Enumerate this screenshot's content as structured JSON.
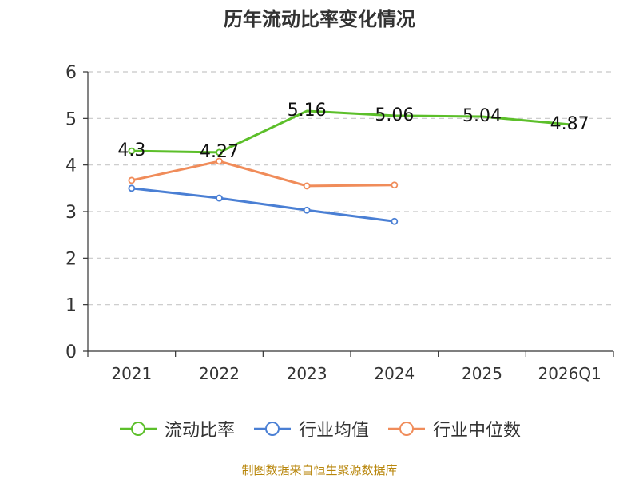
{
  "title": "历年流动比率变化情况",
  "source": "制图数据来自恒生聚源数据库",
  "chart_data": {
    "type": "line",
    "title": "历年流动比率变化情况",
    "categories": [
      "2021",
      "2022",
      "2023",
      "2024",
      "2025",
      "2026Q1"
    ],
    "ylim": [
      0,
      6
    ],
    "yticks": [
      0,
      1,
      2,
      3,
      4,
      5,
      6
    ],
    "grid": true,
    "legend_position": "bottom",
    "series": [
      {
        "name": "流动比率",
        "color": "#5cbf2a",
        "values": [
          4.3,
          4.27,
          5.16,
          5.06,
          5.04,
          4.87
        ],
        "labels": [
          "4.3",
          "4.27",
          "5.16",
          "5.06",
          "5.04",
          "4.87"
        ],
        "show_labels": true
      },
      {
        "name": "行业均值",
        "color": "#4a7fd4",
        "values": [
          3.5,
          3.29,
          3.03,
          2.79,
          null,
          null
        ],
        "show_labels": false
      },
      {
        "name": "行业中位数",
        "color": "#f08c5a",
        "values": [
          3.67,
          4.08,
          3.55,
          3.57,
          null,
          null
        ],
        "show_labels": false
      }
    ]
  }
}
